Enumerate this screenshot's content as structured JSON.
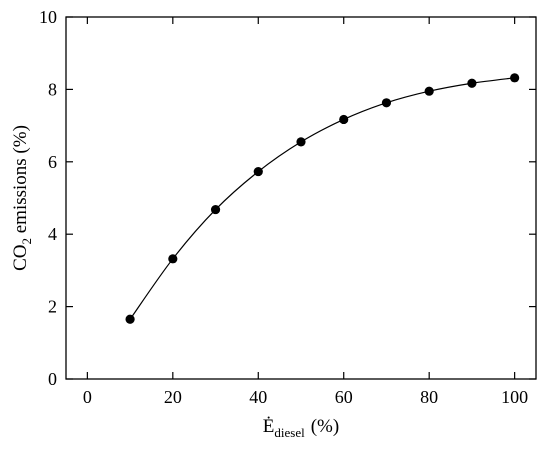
{
  "chart_data": {
    "type": "scatter",
    "xlabel": {
      "main": "Ė",
      "sub": "diesel",
      "unit": "(%)"
    },
    "ylabel": {
      "main": "CO",
      "sub": "2",
      "rest": " emissions (%)"
    },
    "xlim": [
      -5,
      105
    ],
    "ylim": [
      0,
      10
    ],
    "xticks": [
      0,
      20,
      40,
      60,
      80,
      100
    ],
    "yticks": [
      0,
      2,
      4,
      6,
      8,
      10
    ],
    "grid": false,
    "series": [
      {
        "x": [
          10,
          20,
          30,
          40,
          50,
          60,
          70,
          80,
          90,
          100
        ],
        "y": [
          1.65,
          3.32,
          4.68,
          5.73,
          6.55,
          7.17,
          7.63,
          7.95,
          8.17,
          8.32
        ],
        "marker": "circle",
        "color": "#000000",
        "fit_line": true
      }
    ]
  }
}
